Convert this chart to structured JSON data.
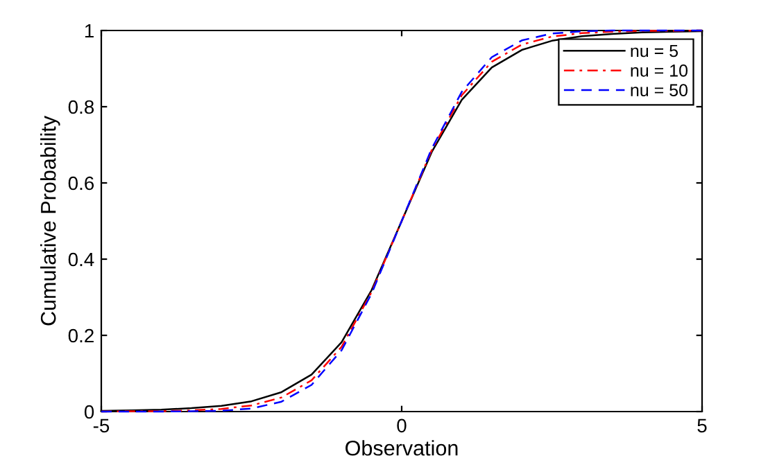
{
  "chart_data": {
    "type": "line",
    "xlabel": "Observation",
    "ylabel": "Cumulative Probability",
    "x": [
      -5,
      -4.5,
      -4,
      -3.5,
      -3,
      -2.5,
      -2,
      -1.5,
      -1,
      -0.5,
      0,
      0.5,
      1,
      1.5,
      2,
      2.5,
      3,
      3.5,
      4,
      4.5,
      5
    ],
    "series": [
      {
        "name": "nu = 5",
        "color": "#000000",
        "line_style": "solid",
        "values": [
          0.002,
          0.003,
          0.005,
          0.009,
          0.015,
          0.027,
          0.051,
          0.097,
          0.182,
          0.319,
          0.5,
          0.681,
          0.818,
          0.903,
          0.949,
          0.973,
          0.985,
          0.991,
          0.995,
          0.997,
          0.998
        ]
      },
      {
        "name": "nu = 10",
        "color": "#ff0000",
        "line_style": "dashdot",
        "values": [
          0.0,
          0.001,
          0.001,
          0.003,
          0.007,
          0.016,
          0.037,
          0.082,
          0.17,
          0.314,
          0.5,
          0.686,
          0.83,
          0.918,
          0.963,
          0.984,
          0.993,
          0.997,
          0.999,
          0.999,
          1.0
        ]
      },
      {
        "name": "nu = 50",
        "color": "#0000ff",
        "line_style": "dashed",
        "values": [
          0.0,
          0.0,
          0.0,
          0.001,
          0.002,
          0.008,
          0.026,
          0.07,
          0.161,
          0.31,
          0.5,
          0.69,
          0.839,
          0.93,
          0.974,
          0.992,
          0.998,
          1.0,
          1.0,
          1.0,
          1.0
        ]
      }
    ],
    "xlim": [
      -5,
      5
    ],
    "xticks": [
      -5,
      0,
      5
    ],
    "ylim": [
      0,
      1
    ],
    "yticks": [
      0,
      0.2,
      0.4,
      0.6,
      0.8,
      1
    ],
    "legend": "top right",
    "grid": false
  }
}
